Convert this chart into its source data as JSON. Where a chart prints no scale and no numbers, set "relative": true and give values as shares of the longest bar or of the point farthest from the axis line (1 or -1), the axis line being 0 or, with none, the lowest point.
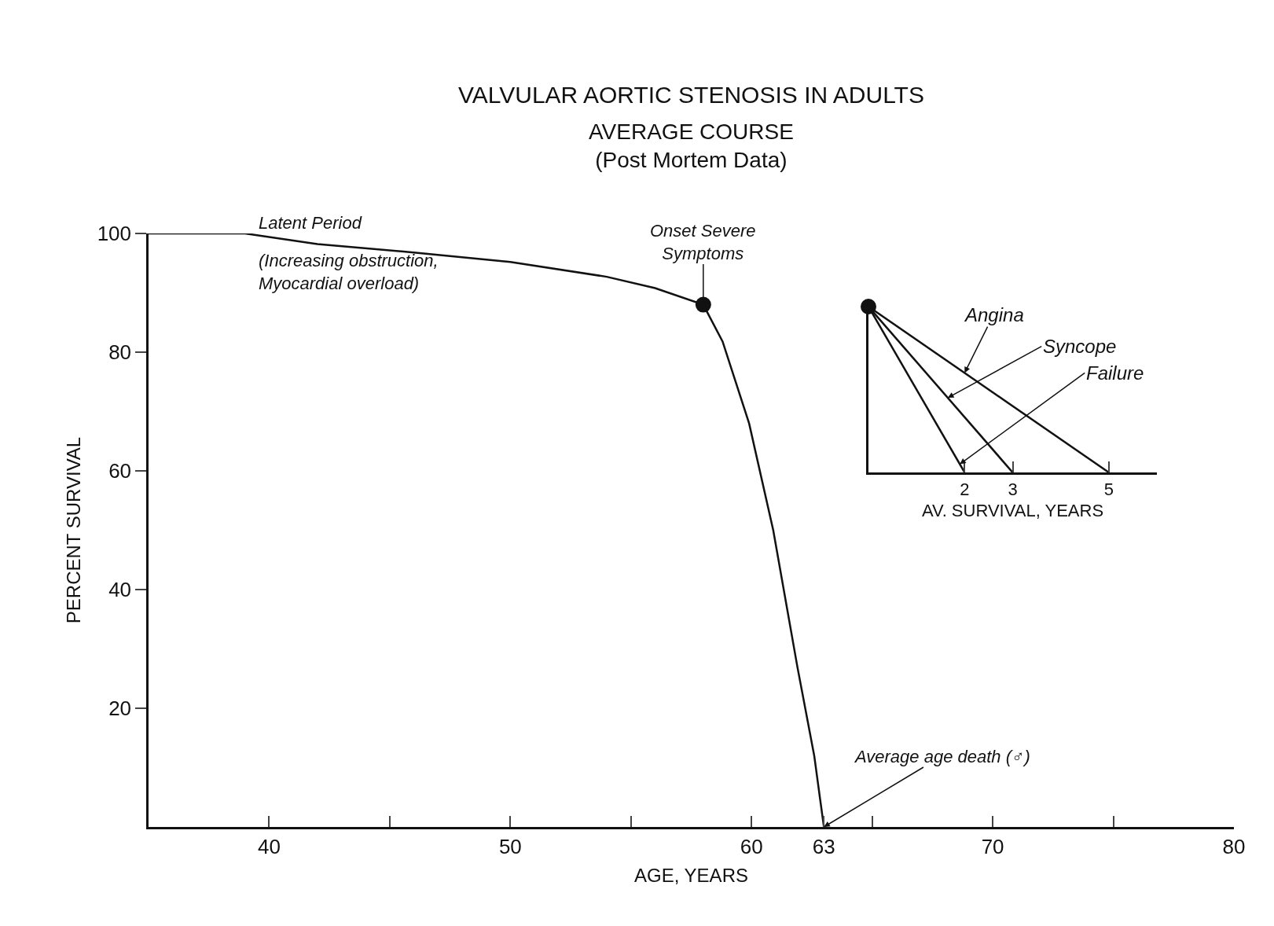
{
  "chart_data": [
    {
      "type": "line",
      "title": "VALVULAR AORTIC STENOSIS IN ADULTS",
      "subtitle": "AVERAGE COURSE\n(Post Mortem Data)",
      "xlabel": "AGE, YEARS",
      "ylabel": "PERCENT SURVIVAL",
      "series": [
        {
          "color": "#111111",
          "x": [
            35,
            39,
            42,
            46,
            50,
            54,
            56,
            58,
            58.8,
            59.9,
            60.9,
            61.9,
            62.6,
            63
          ],
          "values": [
            100,
            100,
            98.2,
            96.8,
            95.2,
            92.7,
            90.8,
            88,
            81.8,
            68,
            50,
            27,
            12,
            0
          ]
        },
        {
          "type": "scatter",
          "marker": "circle",
          "color": "#111111",
          "x": [
            58
          ],
          "values": [
            88
          ]
        }
      ],
      "marker": "none",
      "line_style": "solid",
      "xlim": [
        35,
        80
      ],
      "xticks": [
        {
          "value": 40,
          "label": "40"
        },
        {
          "value": 45,
          "label": null
        },
        {
          "value": 50,
          "label": "50"
        },
        {
          "value": 55,
          "label": null
        },
        {
          "value": 60,
          "label": "60"
        },
        {
          "value": 63,
          "label": "63"
        },
        {
          "value": 65,
          "label": null
        },
        {
          "value": 70,
          "label": "70"
        },
        {
          "value": 75,
          "label": null
        },
        {
          "value": 80,
          "label": "80"
        }
      ],
      "ylim": [
        0,
        100
      ],
      "yticks": [
        20,
        40,
        60,
        80,
        100
      ],
      "legend": false,
      "annotations": [
        "Latent Period",
        "(Increasing obstruction,\nMyocardial overload)",
        {
          "text": "Onset Severe\nSymptoms",
          "x": 58,
          "y": 88
        },
        {
          "text": "Average age death (♂)",
          "x": 63,
          "y": 0
        }
      ]
    },
    {
      "type": "line",
      "xlabel": "AV. SURVIVAL, YEARS",
      "relative": true,
      "series": [
        {
          "name": "Angina",
          "color": "#111111",
          "x": [
            0,
            5
          ],
          "values": [
            1,
            0
          ]
        },
        {
          "name": "Syncope",
          "color": "#111111",
          "x": [
            0,
            3
          ],
          "values": [
            1,
            0
          ]
        },
        {
          "name": "Failure",
          "color": "#111111",
          "x": [
            0,
            2
          ],
          "values": [
            1,
            0
          ]
        },
        {
          "type": "scatter",
          "marker": "circle",
          "color": "#111111",
          "x": [
            0
          ],
          "values": [
            1
          ]
        }
      ],
      "marker": "none",
      "line_style": "solid",
      "xlim": [
        0,
        6
      ],
      "xticks": [
        2,
        3,
        5
      ],
      "legend": false
    }
  ]
}
